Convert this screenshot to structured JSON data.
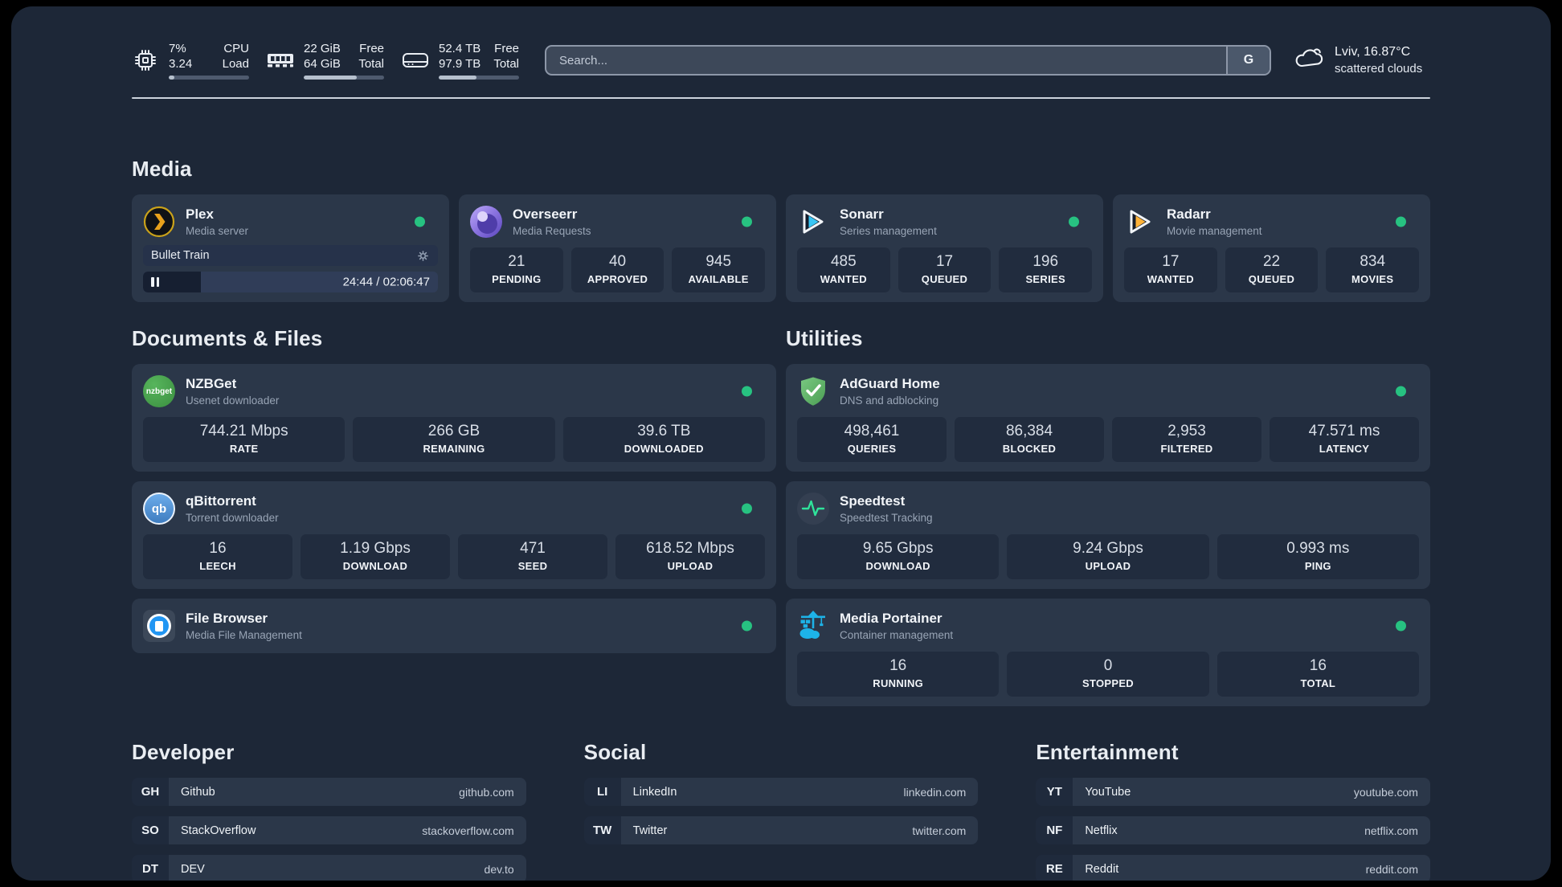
{
  "header": {
    "cpu": {
      "icon": "cpu-chip-icon",
      "value_line1": "7%",
      "value_line2": "3.24",
      "label_line1": "CPU",
      "label_line2": "Load",
      "progress_pct": 7
    },
    "memory": {
      "icon": "memory-stick-icon",
      "value_line1": "22 GiB",
      "value_line2": "64 GiB",
      "label_line1": "Free",
      "label_line2": "Total",
      "progress_pct": 66
    },
    "disk": {
      "icon": "hard-drive-icon",
      "value_line1": "52.4 TB",
      "value_line2": "97.9 TB",
      "label_line1": "Free",
      "label_line2": "Total",
      "progress_pct": 47
    },
    "search": {
      "placeholder": "Search...",
      "engine_button": "G"
    },
    "weather": {
      "icon": "cloud-icon",
      "location": "Lviv, 16.87°C",
      "condition": "scattered clouds"
    }
  },
  "sections": {
    "media": "Media",
    "documents": "Documents & Files",
    "utilities": "Utilities"
  },
  "apps": {
    "plex": {
      "name": "Plex",
      "description": "Media server",
      "status": "online",
      "player": {
        "title": "Bullet Train",
        "time": "24:44 / 02:06:47",
        "progress_pct": 19.5
      }
    },
    "overseerr": {
      "name": "Overseerr",
      "description": "Media Requests",
      "status": "online",
      "stats": [
        {
          "value": "21",
          "label": "PENDING"
        },
        {
          "value": "40",
          "label": "APPROVED"
        },
        {
          "value": "945",
          "label": "AVAILABLE"
        }
      ]
    },
    "sonarr": {
      "name": "Sonarr",
      "description": "Series management",
      "status": "online",
      "stats": [
        {
          "value": "485",
          "label": "WANTED"
        },
        {
          "value": "17",
          "label": "QUEUED"
        },
        {
          "value": "196",
          "label": "SERIES"
        }
      ]
    },
    "radarr": {
      "name": "Radarr",
      "description": "Movie management",
      "status": "online",
      "stats": [
        {
          "value": "17",
          "label": "WANTED"
        },
        {
          "value": "22",
          "label": "QUEUED"
        },
        {
          "value": "834",
          "label": "MOVIES"
        }
      ]
    },
    "nzbget": {
      "name": "NZBGet",
      "description": "Usenet downloader",
      "status": "online",
      "icon_text": "nzbget",
      "stats": [
        {
          "value": "744.21 Mbps",
          "label": "RATE"
        },
        {
          "value": "266 GB",
          "label": "REMAINING"
        },
        {
          "value": "39.6 TB",
          "label": "DOWNLOADED"
        }
      ]
    },
    "qbittorrent": {
      "name": "qBittorrent",
      "description": "Torrent downloader",
      "status": "online",
      "icon_text": "qb",
      "stats": [
        {
          "value": "16",
          "label": "LEECH"
        },
        {
          "value": "1.19 Gbps",
          "label": "DOWNLOAD"
        },
        {
          "value": "471",
          "label": "SEED"
        },
        {
          "value": "618.52 Mbps",
          "label": "UPLOAD"
        }
      ]
    },
    "filebrowser": {
      "name": "File Browser",
      "description": "Media File Management",
      "status": "online"
    },
    "adguard": {
      "name": "AdGuard Home",
      "description": "DNS and adblocking",
      "status": "online",
      "stats": [
        {
          "value": "498,461",
          "label": "QUERIES"
        },
        {
          "value": "86,384",
          "label": "BLOCKED"
        },
        {
          "value": "2,953",
          "label": "FILTERED"
        },
        {
          "value": "47.571 ms",
          "label": "LATENCY"
        }
      ]
    },
    "speedtest": {
      "name": "Speedtest",
      "description": "Speedtest Tracking",
      "stats": [
        {
          "value": "9.65 Gbps",
          "label": "DOWNLOAD"
        },
        {
          "value": "9.24 Gbps",
          "label": "UPLOAD"
        },
        {
          "value": "0.993 ms",
          "label": "PING"
        }
      ]
    },
    "portainer": {
      "name": "Media Portainer",
      "description": "Container management",
      "status": "online",
      "stats": [
        {
          "value": "16",
          "label": "RUNNING"
        },
        {
          "value": "0",
          "label": "STOPPED"
        },
        {
          "value": "16",
          "label": "TOTAL"
        }
      ]
    }
  },
  "bookmarks": {
    "developer": {
      "title": "Developer",
      "items": [
        {
          "abbr": "GH",
          "name": "Github",
          "url": "github.com"
        },
        {
          "abbr": "SO",
          "name": "StackOverflow",
          "url": "stackoverflow.com"
        },
        {
          "abbr": "DT",
          "name": "DEV",
          "url": "dev.to"
        }
      ]
    },
    "social": {
      "title": "Social",
      "items": [
        {
          "abbr": "LI",
          "name": "LinkedIn",
          "url": "linkedin.com"
        },
        {
          "abbr": "TW",
          "name": "Twitter",
          "url": "twitter.com"
        }
      ]
    },
    "entertainment": {
      "title": "Entertainment",
      "items": [
        {
          "abbr": "YT",
          "name": "YouTube",
          "url": "youtube.com"
        },
        {
          "abbr": "NF",
          "name": "Netflix",
          "url": "netflix.com"
        },
        {
          "abbr": "RE",
          "name": "Reddit",
          "url": "reddit.com"
        }
      ]
    }
  },
  "colors": {
    "status_online": "#27c281",
    "plex_accent": "#e8a11c",
    "sonarr_accent": "#38c5f3",
    "radarr_accent": "#ffb33a",
    "portainer_accent": "#1db3e8"
  }
}
